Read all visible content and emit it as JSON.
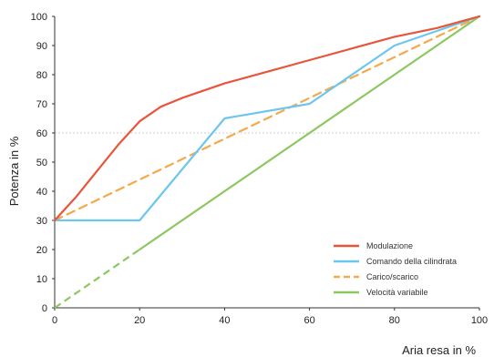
{
  "chart_data": {
    "type": "line",
    "title": "",
    "xlabel": "Aria resa in %",
    "ylabel": "Potenza in %",
    "xlim": [
      0,
      100
    ],
    "ylim": [
      0,
      100
    ],
    "x_ticks": [
      0,
      20,
      40,
      60,
      80,
      100
    ],
    "y_ticks": [
      0,
      10,
      20,
      30,
      40,
      50,
      60,
      70,
      80,
      90,
      100
    ],
    "grid": "dotted horizontal line at 60",
    "legend_position": "bottom-right",
    "series": [
      {
        "name": "Modulazione",
        "color": "#e8553a",
        "style": "solid",
        "points": [
          [
            0,
            30
          ],
          [
            5,
            38
          ],
          [
            10,
            47
          ],
          [
            15,
            56
          ],
          [
            20,
            64
          ],
          [
            25,
            69
          ],
          [
            30,
            72
          ],
          [
            40,
            77
          ],
          [
            50,
            81
          ],
          [
            60,
            85
          ],
          [
            70,
            89
          ],
          [
            80,
            93
          ],
          [
            90,
            96
          ],
          [
            100,
            100
          ]
        ]
      },
      {
        "name": "Comando della cilindrata",
        "color": "#6cc6ee",
        "style": "solid",
        "points": [
          [
            0,
            30
          ],
          [
            20,
            30
          ],
          [
            40,
            65
          ],
          [
            60,
            70
          ],
          [
            80,
            90
          ],
          [
            90,
            95
          ],
          [
            100,
            100
          ]
        ]
      },
      {
        "name": "Carico/scarico",
        "color": "#f5a94a",
        "style": "dashed",
        "points": [
          [
            0,
            30
          ],
          [
            100,
            100
          ]
        ]
      },
      {
        "name": "Velocità variabile",
        "color": "#8cc760",
        "style": "solid",
        "points": [
          [
            20,
            20
          ],
          [
            100,
            100
          ]
        ],
        "dashed_segment": [
          [
            0,
            0
          ],
          [
            20,
            20
          ]
        ]
      }
    ]
  }
}
